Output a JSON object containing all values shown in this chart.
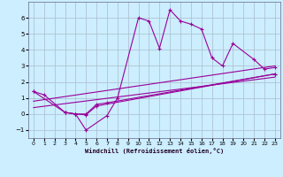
{
  "xlabel": "Windchill (Refroidissement éolien,°C)",
  "bg_color": "#cceeff",
  "line_color": "#990099",
  "grid_color": "#aabbcc",
  "xlim": [
    -0.5,
    23.5
  ],
  "ylim": [
    -1.5,
    7.0
  ],
  "yticks": [
    -1,
    0,
    1,
    2,
    3,
    4,
    5,
    6
  ],
  "xticks": [
    0,
    1,
    2,
    3,
    4,
    5,
    6,
    7,
    8,
    9,
    10,
    11,
    12,
    13,
    14,
    15,
    16,
    17,
    18,
    19,
    20,
    21,
    22,
    23
  ],
  "series": [
    {
      "x": [
        0,
        1,
        3,
        4,
        5,
        7,
        8,
        10,
        11,
        12,
        13,
        14,
        15,
        16,
        17,
        18,
        19,
        21,
        22,
        23
      ],
      "y": [
        1.4,
        1.2,
        0.1,
        0.0,
        -1.0,
        -0.1,
        1.0,
        6.0,
        5.8,
        4.1,
        6.5,
        5.8,
        5.6,
        5.3,
        3.5,
        3.0,
        4.4,
        3.4,
        2.8,
        2.9
      ]
    },
    {
      "x": [
        0,
        3,
        4,
        5,
        6,
        7,
        23
      ],
      "y": [
        1.4,
        0.1,
        0.0,
        0.0,
        0.6,
        0.7,
        2.5
      ]
    },
    {
      "x": [
        3,
        4,
        5,
        6,
        23
      ],
      "y": [
        0.1,
        0.0,
        -0.05,
        0.5,
        2.5
      ]
    },
    {
      "x": [
        0,
        23
      ],
      "y": [
        0.8,
        3.0
      ]
    },
    {
      "x": [
        0,
        23
      ],
      "y": [
        0.4,
        2.3
      ]
    }
  ]
}
